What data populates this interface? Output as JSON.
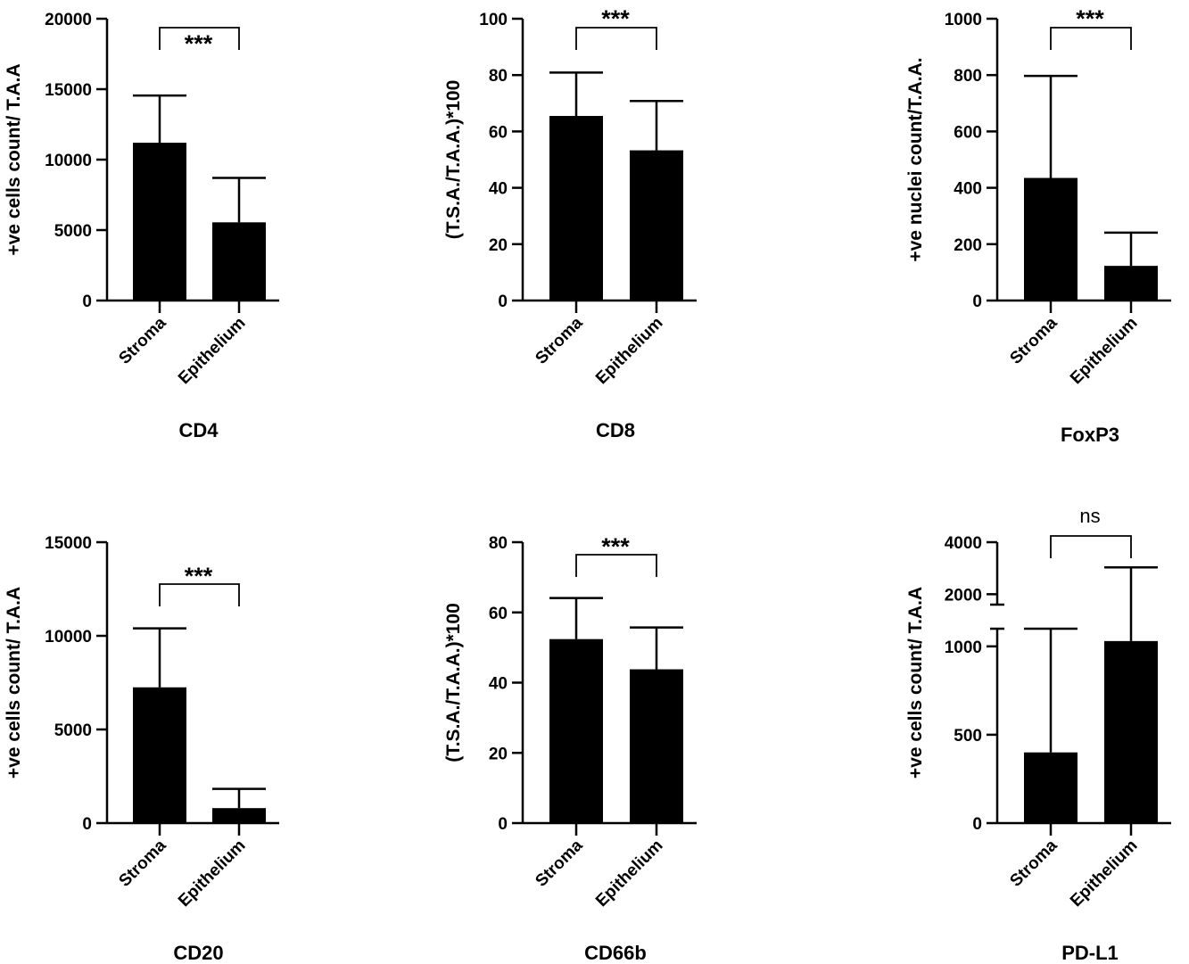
{
  "chart_data": [
    {
      "type": "bar",
      "title": "CD4",
      "ylabel": "+ve cells count/ T.A.A",
      "categories": [
        "Stroma",
        "Epithelium"
      ],
      "values": [
        11200,
        5550
      ],
      "error": [
        3350,
        3150
      ],
      "ylim": [
        0,
        20000
      ],
      "yticks": [
        0,
        5000,
        10000,
        15000,
        20000
      ],
      "significance": "***"
    },
    {
      "type": "bar",
      "title": "CD8",
      "ylabel": "(T.S.A./T.A.A.)*100",
      "categories": [
        "Stroma",
        "Epithelium"
      ],
      "values": [
        65.5,
        53.3
      ],
      "error": [
        15.4,
        17.5
      ],
      "ylim": [
        0,
        100
      ],
      "yticks": [
        0,
        20,
        40,
        60,
        80,
        100
      ],
      "significance": "***"
    },
    {
      "type": "bar",
      "title": "FoxP3",
      "ylabel": "+ve nuclei count/T.A.A.",
      "categories": [
        "Stroma",
        "Epithelium"
      ],
      "values": [
        435,
        123
      ],
      "error": [
        362,
        118
      ],
      "ylim": [
        0,
        1000
      ],
      "yticks": [
        0,
        200,
        400,
        600,
        800,
        1000
      ],
      "significance": "***"
    },
    {
      "type": "bar",
      "title": "CD20",
      "ylabel": "+ve cells count/ T.A.A",
      "categories": [
        "Stroma",
        "Epithelium"
      ],
      "values": [
        7250,
        800
      ],
      "error": [
        3150,
        1030
      ],
      "ylim": [
        0,
        15000
      ],
      "yticks": [
        0,
        5000,
        10000,
        15000
      ],
      "significance": "***"
    },
    {
      "type": "bar",
      "title": "CD66b",
      "ylabel": "(T.S.A./T.A.A.)*100",
      "categories": [
        "Stroma",
        "Epithelium"
      ],
      "values": [
        52.4,
        43.8
      ],
      "error": [
        11.7,
        11.9
      ],
      "ylim": [
        0,
        80
      ],
      "yticks": [
        0,
        20,
        40,
        60,
        80
      ],
      "significance": "***"
    },
    {
      "type": "bar",
      "title": "PD-L1",
      "ylabel": "+ve cells count/ T.A.A",
      "categories": [
        "Stroma",
        "Epithelium"
      ],
      "values": [
        400,
        1030
      ],
      "error": [
        700,
        2000
      ],
      "axis_break": [
        1100,
        1600
      ],
      "ylim": [
        0,
        4000
      ],
      "yticks": [
        0,
        500,
        1000,
        2000,
        4000
      ],
      "significance": "ns"
    }
  ]
}
